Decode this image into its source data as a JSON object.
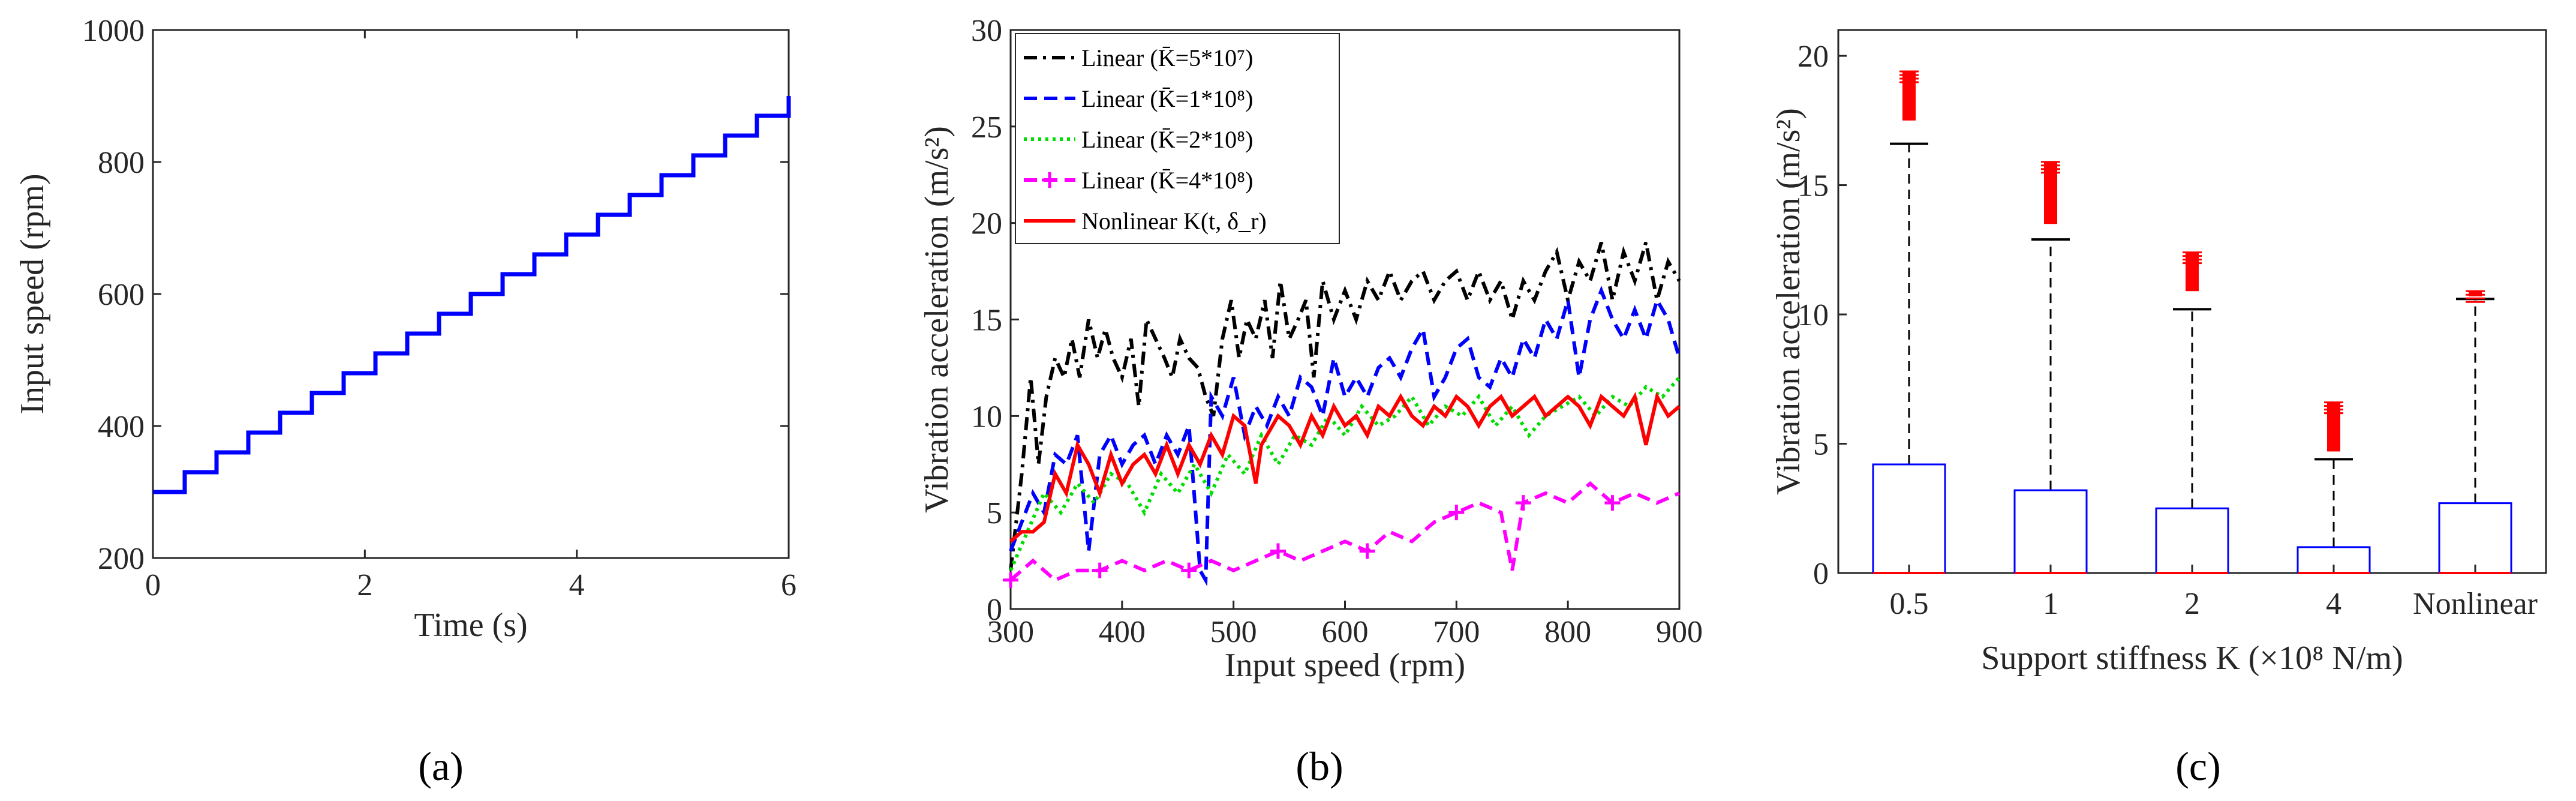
{
  "chart_data": [
    {
      "panel": "(a)",
      "type": "line",
      "xlabel": "Time (s)",
      "ylabel": "Input speed (rpm)",
      "xlim": [
        0,
        6
      ],
      "ylim": [
        200,
        1000
      ],
      "xticks": [
        "0",
        "2",
        "4",
        "6"
      ],
      "yticks": [
        "200",
        "400",
        "600",
        "800",
        "1000"
      ],
      "series": [
        {
          "name": "Input speed",
          "color": "#0000ff",
          "step_x": [
            0,
            0.3,
            0.6,
            0.9,
            1.2,
            1.5,
            1.8,
            2.1,
            2.4,
            2.7,
            3.0,
            3.3,
            3.6,
            3.9,
            4.2,
            4.5,
            4.8,
            5.1,
            5.4,
            5.7,
            6.0
          ],
          "step_y": [
            300,
            330,
            360,
            390,
            420,
            450,
            480,
            510,
            540,
            570,
            600,
            630,
            660,
            690,
            720,
            750,
            780,
            810,
            840,
            870,
            900
          ]
        }
      ]
    },
    {
      "panel": "(b)",
      "type": "line",
      "xlabel": "Input speed (rpm)",
      "ylabel": "Vibration acceleration (m/s²)",
      "xlim": [
        300,
        900
      ],
      "ylim": [
        0,
        30
      ],
      "xticks": [
        "300",
        "400",
        "500",
        "600",
        "700",
        "800",
        "900"
      ],
      "yticks": [
        "0",
        "5",
        "10",
        "15",
        "20",
        "25",
        "30"
      ],
      "legend_position": "top-left",
      "series": [
        {
          "name": "Linear (K̄=5*10⁷)",
          "color": "#000000",
          "style": "dashdot",
          "x": [
            300,
            310,
            318,
            325,
            332,
            340,
            348,
            355,
            362,
            370,
            378,
            385,
            392,
            400,
            408,
            415,
            422,
            430,
            438,
            445,
            452,
            460,
            468,
            475,
            482,
            490,
            498,
            505,
            512,
            520,
            528,
            535,
            542,
            550,
            558,
            565,
            572,
            580,
            590,
            600,
            610,
            620,
            630,
            640,
            650,
            660,
            670,
            680,
            690,
            700,
            710,
            720,
            730,
            740,
            750,
            760,
            770,
            780,
            790,
            800,
            810,
            820,
            830,
            840,
            850,
            860,
            870,
            880,
            890,
            900
          ],
          "values": [
            2,
            7,
            12,
            7.5,
            11,
            13,
            12,
            14,
            12,
            15,
            13,
            14.5,
            13,
            12,
            14,
            10.5,
            15,
            14,
            13,
            12,
            14,
            13,
            12.5,
            11,
            10,
            14,
            16,
            13,
            15,
            14,
            16,
            13,
            17,
            14,
            15,
            16,
            12,
            17,
            15,
            16.5,
            15,
            17,
            16,
            17.5,
            16,
            17,
            17.5,
            16,
            17,
            17.5,
            16,
            17.5,
            16,
            17,
            15,
            17,
            16,
            17.5,
            18.5,
            16,
            18,
            17,
            19,
            16,
            18.5,
            17,
            19,
            16,
            18,
            17
          ]
        },
        {
          "name": "Linear (K̄=1*10⁸)",
          "color": "#0000ff",
          "style": "dashed",
          "x": [
            300,
            310,
            320,
            330,
            340,
            350,
            360,
            370,
            380,
            390,
            400,
            410,
            420,
            430,
            440,
            450,
            460,
            470,
            475,
            480,
            490,
            500,
            510,
            520,
            530,
            540,
            550,
            560,
            570,
            580,
            590,
            600,
            610,
            620,
            630,
            640,
            650,
            660,
            670,
            680,
            690,
            700,
            710,
            720,
            730,
            740,
            750,
            760,
            770,
            780,
            790,
            800,
            810,
            820,
            830,
            840,
            850,
            860,
            870,
            880,
            890,
            900
          ],
          "values": [
            3,
            4.5,
            6,
            5,
            8,
            7.5,
            9,
            3,
            8,
            9,
            7.5,
            8.5,
            9,
            7.5,
            9,
            8,
            9.5,
            2,
            1.5,
            11,
            10,
            12,
            9,
            10.5,
            9.5,
            11,
            10,
            12,
            11.5,
            10,
            13,
            11,
            12,
            11,
            12.5,
            13,
            12,
            13.5,
            14.5,
            11,
            12,
            13.5,
            14,
            12,
            11.5,
            13,
            12,
            14,
            13,
            15,
            14,
            16,
            12,
            15,
            16.5,
            15,
            14,
            15.5,
            14,
            16,
            15,
            13
          ]
        },
        {
          "name": "Linear (K̄=2*10⁸)",
          "color": "#00dd00",
          "style": "dotted",
          "x": [
            300,
            315,
            330,
            345,
            360,
            375,
            390,
            405,
            420,
            435,
            450,
            465,
            480,
            495,
            510,
            525,
            540,
            555,
            570,
            585,
            600,
            615,
            630,
            645,
            660,
            675,
            690,
            705,
            720,
            735,
            750,
            765,
            780,
            795,
            810,
            825,
            840,
            855,
            870,
            885,
            900
          ],
          "values": [
            2,
            4,
            6,
            5,
            6.5,
            5.5,
            7,
            6.5,
            5,
            7,
            6,
            7.5,
            6,
            8,
            7,
            9,
            7.5,
            9,
            8.5,
            10,
            9,
            10.5,
            9.5,
            10,
            11,
            9.5,
            10.5,
            10,
            11,
            9.5,
            10.5,
            9,
            10,
            10.5,
            11,
            10,
            11,
            10.5,
            11.5,
            11,
            12
          ]
        },
        {
          "name": "Linear (K̄=4*10⁸)",
          "color": "#ff00ff",
          "style": "dashed-plus",
          "x": [
            300,
            320,
            340,
            360,
            380,
            400,
            420,
            440,
            460,
            480,
            500,
            520,
            540,
            560,
            580,
            600,
            620,
            640,
            660,
            680,
            700,
            720,
            740,
            750,
            760,
            780,
            800,
            820,
            840,
            860,
            880,
            900
          ],
          "values": [
            1.5,
            2.5,
            1.5,
            2,
            2,
            2.5,
            2,
            2.5,
            2,
            2.5,
            2,
            2.5,
            3,
            2.5,
            3,
            3.5,
            3,
            4,
            3.5,
            4.5,
            5,
            5.5,
            5,
            2,
            5.5,
            6,
            5.5,
            6.5,
            5.5,
            6,
            5.5,
            6
          ]
        },
        {
          "name": "Nonlinear K(t, δ_r)",
          "color": "#ff0000",
          "style": "solid",
          "x": [
            300,
            310,
            320,
            330,
            340,
            350,
            360,
            370,
            380,
            390,
            400,
            410,
            420,
            430,
            440,
            450,
            460,
            470,
            480,
            490,
            500,
            510,
            520,
            525,
            530,
            540,
            550,
            560,
            570,
            580,
            590,
            600,
            610,
            620,
            630,
            640,
            650,
            660,
            670,
            680,
            690,
            700,
            710,
            720,
            730,
            740,
            750,
            760,
            770,
            780,
            790,
            800,
            810,
            820,
            830,
            840,
            850,
            860,
            870,
            880,
            890,
            900
          ],
          "values": [
            3.5,
            4,
            4,
            4.5,
            7,
            6,
            8.5,
            7.5,
            6,
            8,
            6.5,
            7.5,
            8,
            7,
            8.5,
            7,
            8.5,
            7.5,
            9,
            8,
            10,
            9.5,
            6.5,
            8.5,
            9,
            10,
            9.5,
            8.5,
            10,
            9,
            10.5,
            9.5,
            10,
            9,
            10.5,
            10,
            11,
            10,
            9.5,
            10.5,
            10,
            11,
            10.5,
            9.5,
            10.5,
            11,
            10,
            10.5,
            11,
            10,
            10.5,
            11,
            10.5,
            9.5,
            11,
            10.5,
            10,
            11,
            8.5,
            11,
            10,
            10.5
          ]
        }
      ]
    },
    {
      "panel": "(c)",
      "type": "box",
      "xlabel": "Support stiffness K (×10⁸ N/m)",
      "ylabel": "Vibration acceleration (m/s²)",
      "ylim": [
        0,
        21
      ],
      "yticks": [
        "0",
        "5",
        "10",
        "15",
        "20"
      ],
      "categories": [
        "0.5",
        "1",
        "2",
        "4",
        "Nonlinear"
      ],
      "box_color": "#0000ff",
      "outlier_color": "#ff0000",
      "boxes": [
        {
          "q1": 0,
          "median": 0,
          "q3": 4.2,
          "whisker_low": 0,
          "whisker_high": 16.6,
          "outlier_min": 17.5,
          "outlier_max": 19.4
        },
        {
          "q1": 0,
          "median": 0,
          "q3": 3.2,
          "whisker_low": 0,
          "whisker_high": 12.9,
          "outlier_min": 13.5,
          "outlier_max": 15.9
        },
        {
          "q1": 0,
          "median": 0,
          "q3": 2.5,
          "whisker_low": 0,
          "whisker_high": 10.2,
          "outlier_min": 10.9,
          "outlier_max": 12.4
        },
        {
          "q1": 0,
          "median": 0,
          "q3": 1.0,
          "whisker_low": 0,
          "whisker_high": 4.4,
          "outlier_min": 4.7,
          "outlier_max": 6.6
        },
        {
          "q1": 0,
          "median": 0,
          "q3": 2.7,
          "whisker_low": 0,
          "whisker_high": 10.6,
          "outlier_min": 10.7,
          "outlier_max": 10.9
        }
      ]
    }
  ],
  "captions": {
    "a": "(a)",
    "b": "(b)",
    "c": "(c)"
  }
}
